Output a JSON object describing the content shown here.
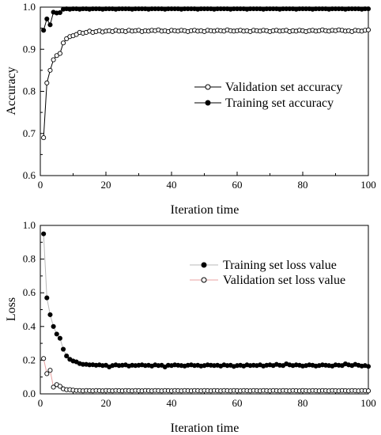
{
  "chart_data": [
    {
      "type": "line",
      "title": "",
      "xlabel": "Iteration time",
      "ylabel": "Accuracy",
      "xlim": [
        0,
        100
      ],
      "ylim": [
        0.6,
        1.0
      ],
      "xticks": [
        0,
        20,
        40,
        60,
        80,
        100
      ],
      "yticks": [
        0.6,
        0.7,
        0.8,
        0.9,
        1.0
      ],
      "xtick_labels": [
        "0",
        "20",
        "40",
        "60",
        "80",
        "100"
      ],
      "ytick_labels": [
        "0.6",
        "0.7",
        "0.8",
        "0.9",
        "1.0"
      ],
      "legend_position": "center-right",
      "series": [
        {
          "name": "Validation set accuracy",
          "marker": "open-circle",
          "color": "#000000",
          "line_color": "#000000",
          "x": [
            1,
            2,
            3,
            4,
            5,
            6,
            7,
            8,
            9,
            10,
            11,
            12,
            13,
            14,
            15,
            16,
            17,
            18,
            19,
            20,
            21,
            22,
            23,
            24,
            25,
            26,
            27,
            28,
            29,
            30,
            31,
            32,
            33,
            34,
            35,
            36,
            37,
            38,
            39,
            40,
            41,
            42,
            43,
            44,
            45,
            46,
            47,
            48,
            49,
            50,
            51,
            52,
            53,
            54,
            55,
            56,
            57,
            58,
            59,
            60,
            61,
            62,
            63,
            64,
            65,
            66,
            67,
            68,
            69,
            70,
            71,
            72,
            73,
            74,
            75,
            76,
            77,
            78,
            79,
            80,
            81,
            82,
            83,
            84,
            85,
            86,
            87,
            88,
            89,
            90,
            91,
            92,
            93,
            94,
            95,
            96,
            97,
            98,
            99,
            100
          ],
          "y": [
            0.69,
            0.82,
            0.85,
            0.875,
            0.885,
            0.89,
            0.915,
            0.925,
            0.93,
            0.932,
            0.935,
            0.94,
            0.938,
            0.94,
            0.943,
            0.94,
            0.942,
            0.944,
            0.941,
            0.943,
            0.944,
            0.942,
            0.945,
            0.943,
            0.944,
            0.942,
            0.945,
            0.943,
            0.944,
            0.945,
            0.942,
            0.944,
            0.943,
            0.945,
            0.944,
            0.946,
            0.943,
            0.944,
            0.942,
            0.945,
            0.944,
            0.943,
            0.945,
            0.944,
            0.942,
            0.944,
            0.945,
            0.943,
            0.944,
            0.942,
            0.945,
            0.944,
            0.943,
            0.945,
            0.944,
            0.943,
            0.946,
            0.944,
            0.943,
            0.944,
            0.945,
            0.943,
            0.944,
            0.942,
            0.945,
            0.944,
            0.943,
            0.945,
            0.944,
            0.942,
            0.944,
            0.945,
            0.943,
            0.944,
            0.945,
            0.942,
            0.944,
            0.943,
            0.945,
            0.944,
            0.942,
            0.944,
            0.945,
            0.943,
            0.944,
            0.946,
            0.944,
            0.943,
            0.945,
            0.944,
            0.946,
            0.945,
            0.943,
            0.944,
            0.942,
            0.945,
            0.944,
            0.943,
            0.945,
            0.946
          ]
        },
        {
          "name": "Training set accuracy",
          "marker": "filled-circle",
          "color": "#000000",
          "line_color": "#000000",
          "x": [
            1,
            2,
            3,
            4,
            5,
            6,
            7,
            8,
            9,
            10,
            11,
            12,
            13,
            14,
            15,
            16,
            17,
            18,
            19,
            20,
            21,
            22,
            23,
            24,
            25,
            26,
            27,
            28,
            29,
            30,
            31,
            32,
            33,
            34,
            35,
            36,
            37,
            38,
            39,
            40,
            41,
            42,
            43,
            44,
            45,
            46,
            47,
            48,
            49,
            50,
            51,
            52,
            53,
            54,
            55,
            56,
            57,
            58,
            59,
            60,
            61,
            62,
            63,
            64,
            65,
            66,
            67,
            68,
            69,
            70,
            71,
            72,
            73,
            74,
            75,
            76,
            77,
            78,
            79,
            80,
            81,
            82,
            83,
            84,
            85,
            86,
            87,
            88,
            89,
            90,
            91,
            92,
            93,
            94,
            95,
            96,
            97,
            98,
            99,
            100
          ],
          "y": [
            0.945,
            0.972,
            0.958,
            0.988,
            0.986,
            0.987,
            0.995,
            0.996,
            0.995,
            0.996,
            0.996,
            0.995,
            0.996,
            0.996,
            0.995,
            0.996,
            0.996,
            0.996,
            0.995,
            0.996,
            0.996,
            0.996,
            0.995,
            0.996,
            0.996,
            0.996,
            0.996,
            0.995,
            0.996,
            0.996,
            0.996,
            0.996,
            0.995,
            0.996,
            0.996,
            0.996,
            0.996,
            0.995,
            0.996,
            0.996,
            0.996,
            0.996,
            0.995,
            0.996,
            0.996,
            0.996,
            0.996,
            0.995,
            0.996,
            0.996,
            0.996,
            0.996,
            0.995,
            0.996,
            0.996,
            0.996,
            0.996,
            0.995,
            0.996,
            0.996,
            0.996,
            0.996,
            0.995,
            0.996,
            0.996,
            0.996,
            0.996,
            0.995,
            0.996,
            0.996,
            0.996,
            0.996,
            0.995,
            0.996,
            0.996,
            0.996,
            0.996,
            0.995,
            0.996,
            0.996,
            0.996,
            0.996,
            0.995,
            0.996,
            0.996,
            0.996,
            0.996,
            0.995,
            0.996,
            0.996,
            0.996,
            0.996,
            0.995,
            0.996,
            0.996,
            0.996,
            0.996,
            0.995,
            0.996,
            0.996
          ]
        }
      ]
    },
    {
      "type": "line",
      "title": "",
      "xlabel": "Iteration time",
      "ylabel": "Loss",
      "xlim": [
        0,
        100
      ],
      "ylim": [
        0.0,
        1.0
      ],
      "xticks": [
        0,
        20,
        40,
        60,
        80,
        100
      ],
      "yticks": [
        0.0,
        0.2,
        0.4,
        0.6,
        0.8,
        1.0
      ],
      "xtick_labels": [
        "0",
        "20",
        "40",
        "60",
        "80",
        "100"
      ],
      "ytick_labels": [
        "0.0",
        "0.2",
        "0.4",
        "0.6",
        "0.8",
        "1.0"
      ],
      "legend_position": "center-right",
      "series": [
        {
          "name": "Training set loss value",
          "marker": "filled-circle",
          "color": "#000000",
          "line_color": "#b8b8b8",
          "x": [
            1,
            2,
            3,
            4,
            5,
            6,
            7,
            8,
            9,
            10,
            11,
            12,
            13,
            14,
            15,
            16,
            17,
            18,
            19,
            20,
            21,
            22,
            23,
            24,
            25,
            26,
            27,
            28,
            29,
            30,
            31,
            32,
            33,
            34,
            35,
            36,
            37,
            38,
            39,
            40,
            41,
            42,
            43,
            44,
            45,
            46,
            47,
            48,
            49,
            50,
            51,
            52,
            53,
            54,
            55,
            56,
            57,
            58,
            59,
            60,
            61,
            62,
            63,
            64,
            65,
            66,
            67,
            68,
            69,
            70,
            71,
            72,
            73,
            74,
            75,
            76,
            77,
            78,
            79,
            80,
            81,
            82,
            83,
            84,
            85,
            86,
            87,
            88,
            89,
            90,
            91,
            92,
            93,
            94,
            95,
            96,
            97,
            98,
            99,
            100
          ],
          "y": [
            0.95,
            0.57,
            0.47,
            0.4,
            0.355,
            0.33,
            0.265,
            0.225,
            0.205,
            0.195,
            0.19,
            0.18,
            0.175,
            0.175,
            0.172,
            0.173,
            0.17,
            0.172,
            0.168,
            0.17,
            0.16,
            0.168,
            0.172,
            0.168,
            0.17,
            0.172,
            0.165,
            0.17,
            0.168,
            0.17,
            0.172,
            0.168,
            0.17,
            0.165,
            0.172,
            0.168,
            0.17,
            0.16,
            0.17,
            0.168,
            0.172,
            0.17,
            0.168,
            0.165,
            0.17,
            0.172,
            0.168,
            0.17,
            0.165,
            0.168,
            0.172,
            0.17,
            0.168,
            0.17,
            0.165,
            0.172,
            0.168,
            0.17,
            0.163,
            0.168,
            0.17,
            0.165,
            0.172,
            0.168,
            0.17,
            0.168,
            0.172,
            0.165,
            0.17,
            0.172,
            0.168,
            0.175,
            0.17,
            0.168,
            0.178,
            0.172,
            0.168,
            0.172,
            0.17,
            0.165,
            0.168,
            0.172,
            0.17,
            0.165,
            0.168,
            0.172,
            0.17,
            0.168,
            0.165,
            0.172,
            0.17,
            0.168,
            0.178,
            0.172,
            0.168,
            0.175,
            0.17,
            0.165,
            0.168,
            0.163
          ]
        },
        {
          "name": "Validation set loss value",
          "marker": "open-circle",
          "color": "#000000",
          "line_color": "#e8a0a0",
          "x": [
            1,
            2,
            3,
            4,
            5,
            6,
            7,
            8,
            9,
            10,
            11,
            12,
            13,
            14,
            15,
            16,
            17,
            18,
            19,
            20,
            21,
            22,
            23,
            24,
            25,
            26,
            27,
            28,
            29,
            30,
            31,
            32,
            33,
            34,
            35,
            36,
            37,
            38,
            39,
            40,
            41,
            42,
            43,
            44,
            45,
            46,
            47,
            48,
            49,
            50,
            51,
            52,
            53,
            54,
            55,
            56,
            57,
            58,
            59,
            60,
            61,
            62,
            63,
            64,
            65,
            66,
            67,
            68,
            69,
            70,
            71,
            72,
            73,
            74,
            75,
            76,
            77,
            78,
            79,
            80,
            81,
            82,
            83,
            84,
            85,
            86,
            87,
            88,
            89,
            90,
            91,
            92,
            93,
            94,
            95,
            96,
            97,
            98,
            99,
            100
          ],
          "y": [
            0.21,
            0.12,
            0.14,
            0.04,
            0.055,
            0.045,
            0.03,
            0.025,
            0.025,
            0.022,
            0.02,
            0.02,
            0.018,
            0.02,
            0.019,
            0.018,
            0.02,
            0.019,
            0.018,
            0.02,
            0.019,
            0.018,
            0.02,
            0.019,
            0.018,
            0.02,
            0.019,
            0.018,
            0.02,
            0.019,
            0.018,
            0.02,
            0.019,
            0.018,
            0.02,
            0.019,
            0.018,
            0.02,
            0.019,
            0.018,
            0.02,
            0.019,
            0.018,
            0.02,
            0.019,
            0.018,
            0.02,
            0.019,
            0.018,
            0.02,
            0.019,
            0.018,
            0.02,
            0.019,
            0.018,
            0.02,
            0.019,
            0.018,
            0.02,
            0.019,
            0.018,
            0.02,
            0.019,
            0.018,
            0.02,
            0.019,
            0.018,
            0.02,
            0.019,
            0.018,
            0.02,
            0.019,
            0.018,
            0.02,
            0.019,
            0.018,
            0.02,
            0.019,
            0.018,
            0.02,
            0.019,
            0.018,
            0.02,
            0.019,
            0.018,
            0.02,
            0.019,
            0.018,
            0.02,
            0.019,
            0.018,
            0.02,
            0.019,
            0.018,
            0.02,
            0.019,
            0.018,
            0.02,
            0.019,
            0.018
          ]
        }
      ]
    }
  ]
}
